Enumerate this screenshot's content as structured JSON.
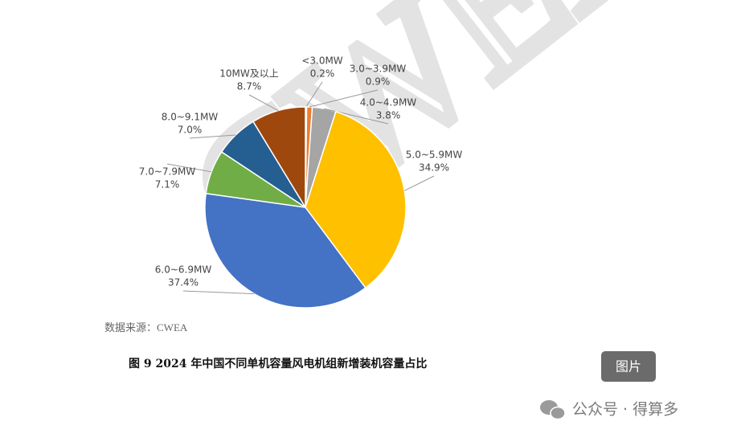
{
  "chart_data": {
    "type": "pie",
    "categories": [
      "<3.0MW",
      "3.0~3.9MW",
      "4.0~4.9MW",
      "5.0~5.9MW",
      "6.0~6.9MW",
      "7.0~7.9MW",
      "8.0~9.1MW",
      "10MW及以上"
    ],
    "values": [
      0.2,
      0.9,
      3.8,
      34.9,
      37.4,
      7.1,
      7.0,
      8.7
    ],
    "value_labels": [
      "0.2%",
      "0.9%",
      "3.8%",
      "34.9%",
      "37.4%",
      "7.1%",
      "7.0%",
      "8.7%"
    ],
    "colors": [
      "#5b9bd5",
      "#ed7d31",
      "#a5a5a5",
      "#ffc000",
      "#4472c4",
      "#70ad47",
      "#255e91",
      "#9e480e"
    ],
    "source": "数据来源：CWEA",
    "caption": "图 9   2024 年中国不同单机容量风电机组新增装机容量占比"
  },
  "watermark_text": "CWEA",
  "button": "图片",
  "account": "公众号 · 得算多"
}
